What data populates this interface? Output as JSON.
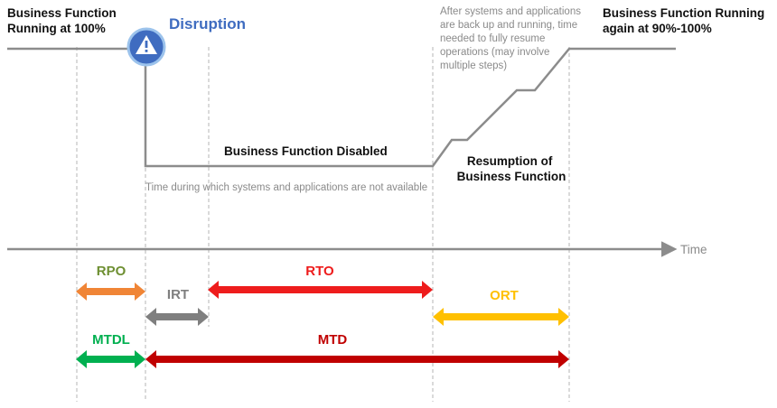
{
  "labels": {
    "running_100_line1": "Business Function",
    "running_100_line2": "Running at 100%",
    "disruption": "Disruption",
    "after_note_lines": [
      "After systems and applications",
      "are back up and running, time",
      "needed to fully resume",
      "operations (may involve",
      "multiple steps)"
    ],
    "running_again_line1": "Business Function Running",
    "running_again_line2": "again at 90%-100%",
    "disabled": "Business Function Disabled",
    "not_available": "Time during which systems and applications are not available",
    "resumption_line1": "Resumption of",
    "resumption_line2": "Business Function",
    "time_axis": "Time"
  },
  "metrics": {
    "rpo": "RPO",
    "irt": "IRT",
    "rto": "RTO",
    "ort": "ORT",
    "mtdl": "MTDL",
    "mtd": "MTD"
  },
  "icons": {
    "disruption": "warning-triangle-icon"
  },
  "colors": {
    "rpo": "#f08536",
    "irt": "#7f7f7f",
    "rto": "#ee1c1c",
    "ort": "#ffc000",
    "mtdl": "#00b050",
    "mtd": "#c00000",
    "line": "#8c8c8c",
    "disruption": "#3f6cc0"
  }
}
